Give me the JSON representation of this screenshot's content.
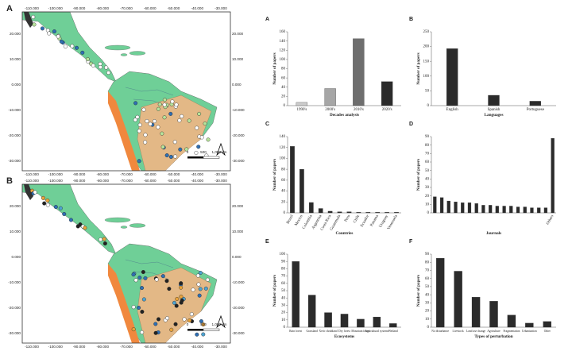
{
  "maps": [
    {
      "panel": "A",
      "lon_labels": [
        "-110.000",
        "-100.000",
        "-90.000",
        "-80.000",
        "-70.000",
        "-60.000",
        "-50.000",
        "-40.000",
        "-30.000"
      ],
      "lat_labels": [
        "20.000",
        "10.000",
        "0.000",
        "-10.000",
        "-20.000",
        "-30.000"
      ],
      "scale_labels": [
        "0",
        "500",
        "1,000 km"
      ]
    },
    {
      "panel": "B",
      "lon_labels": [
        "-110.000",
        "-100.000",
        "-90.000",
        "-80.000",
        "-70.000",
        "-60.000",
        "-50.000",
        "-40.000",
        "-30.000"
      ],
      "lat_labels": [
        "20.000",
        "10.000",
        "0.000",
        "-10.000",
        "-20.000",
        "-30.000"
      ],
      "scale_labels": [
        "0",
        "500",
        "1,000 km"
      ]
    }
  ],
  "chart_data": [
    {
      "type": "bar",
      "panel": "A",
      "x_label": "Decades analysis",
      "y_label": "Number of papers",
      "categories": [
        "1990's",
        "2000's",
        "2010's",
        "2020's"
      ],
      "values": [
        7,
        37,
        145,
        52
      ],
      "colors": [
        "#cccccc",
        "#a6a6a6",
        "#6e6e6e",
        "#2b2b2b"
      ],
      "ylim": [
        0,
        160
      ],
      "yticks": [
        0,
        20,
        40,
        60,
        80,
        100,
        120,
        140,
        160
      ]
    },
    {
      "type": "bar",
      "panel": "B",
      "x_label": "Languages",
      "y_label": "Number of papers",
      "categories": [
        "English",
        "Spanish",
        "Portuguese"
      ],
      "values": [
        193,
        35,
        15
      ],
      "color": "#2b2b2b",
      "ylim": [
        0,
        250
      ],
      "yticks": [
        0,
        50,
        100,
        150,
        200,
        250
      ]
    },
    {
      "type": "bar",
      "panel": "C",
      "x_label": "Countries",
      "y_label": "Number of papers",
      "categories": [
        "Brazil",
        "Mexico",
        "Colombia",
        "Argentina",
        "Costa Rica",
        "Guatemala",
        "Peru",
        "Chile",
        "Ecuador",
        "Panama",
        "Uruguay",
        "Venezuela"
      ],
      "values": [
        122,
        80,
        19,
        8,
        3,
        2,
        2,
        1,
        1,
        1,
        1,
        1
      ],
      "color": "#2b2b2b",
      "ylim": [
        0,
        140
      ],
      "yticks": [
        0,
        20,
        40,
        60,
        80,
        100,
        120,
        140
      ],
      "rotate": true
    },
    {
      "type": "bar",
      "panel": "D",
      "x_label": "Journals",
      "y_label": "Number of papers",
      "categories": [
        null,
        null,
        null,
        null,
        null,
        null,
        null,
        null,
        null,
        null,
        null,
        null,
        null,
        null,
        null,
        null,
        null,
        "Others"
      ],
      "values": [
        19,
        18,
        14,
        13,
        12,
        12,
        11,
        9,
        9,
        8,
        8,
        8,
        7,
        7,
        6,
        6,
        6,
        88
      ],
      "color": "#2b2b2b",
      "ylim": [
        0,
        90
      ],
      "yticks": [
        0,
        10,
        20,
        30,
        40,
        50,
        60,
        70,
        80,
        90
      ],
      "rotate": true
    },
    {
      "type": "bar",
      "panel": "E",
      "x_label": "Ecosystems",
      "y_label": "Number of papers",
      "categories": [
        "Rain forest",
        "Grassland",
        "Xeric shrubland",
        "Dry forest",
        "Mountain forest",
        "Agricultural systems",
        "Wetland"
      ],
      "values": [
        90,
        44,
        20,
        18,
        11,
        14,
        5
      ],
      "color": "#2b2b2b",
      "ylim": [
        0,
        100
      ],
      "yticks": [
        0,
        10,
        20,
        30,
        40,
        50,
        60,
        70,
        80,
        90,
        100
      ]
    },
    {
      "type": "bar",
      "panel": "F",
      "x_label": "Types of perturbation",
      "y_label": "Number of papers",
      "categories": [
        "No disturbance",
        "Livestock",
        "Land use change",
        "Agriculture",
        "Fragmentation",
        "Urbanization",
        "Other"
      ],
      "values": [
        85,
        69,
        37,
        32,
        15,
        5,
        7
      ],
      "color": "#2b2b2b",
      "ylim": [
        0,
        90
      ],
      "yticks": [
        0,
        10,
        20,
        30,
        40,
        50,
        60,
        70,
        80,
        90
      ]
    }
  ]
}
